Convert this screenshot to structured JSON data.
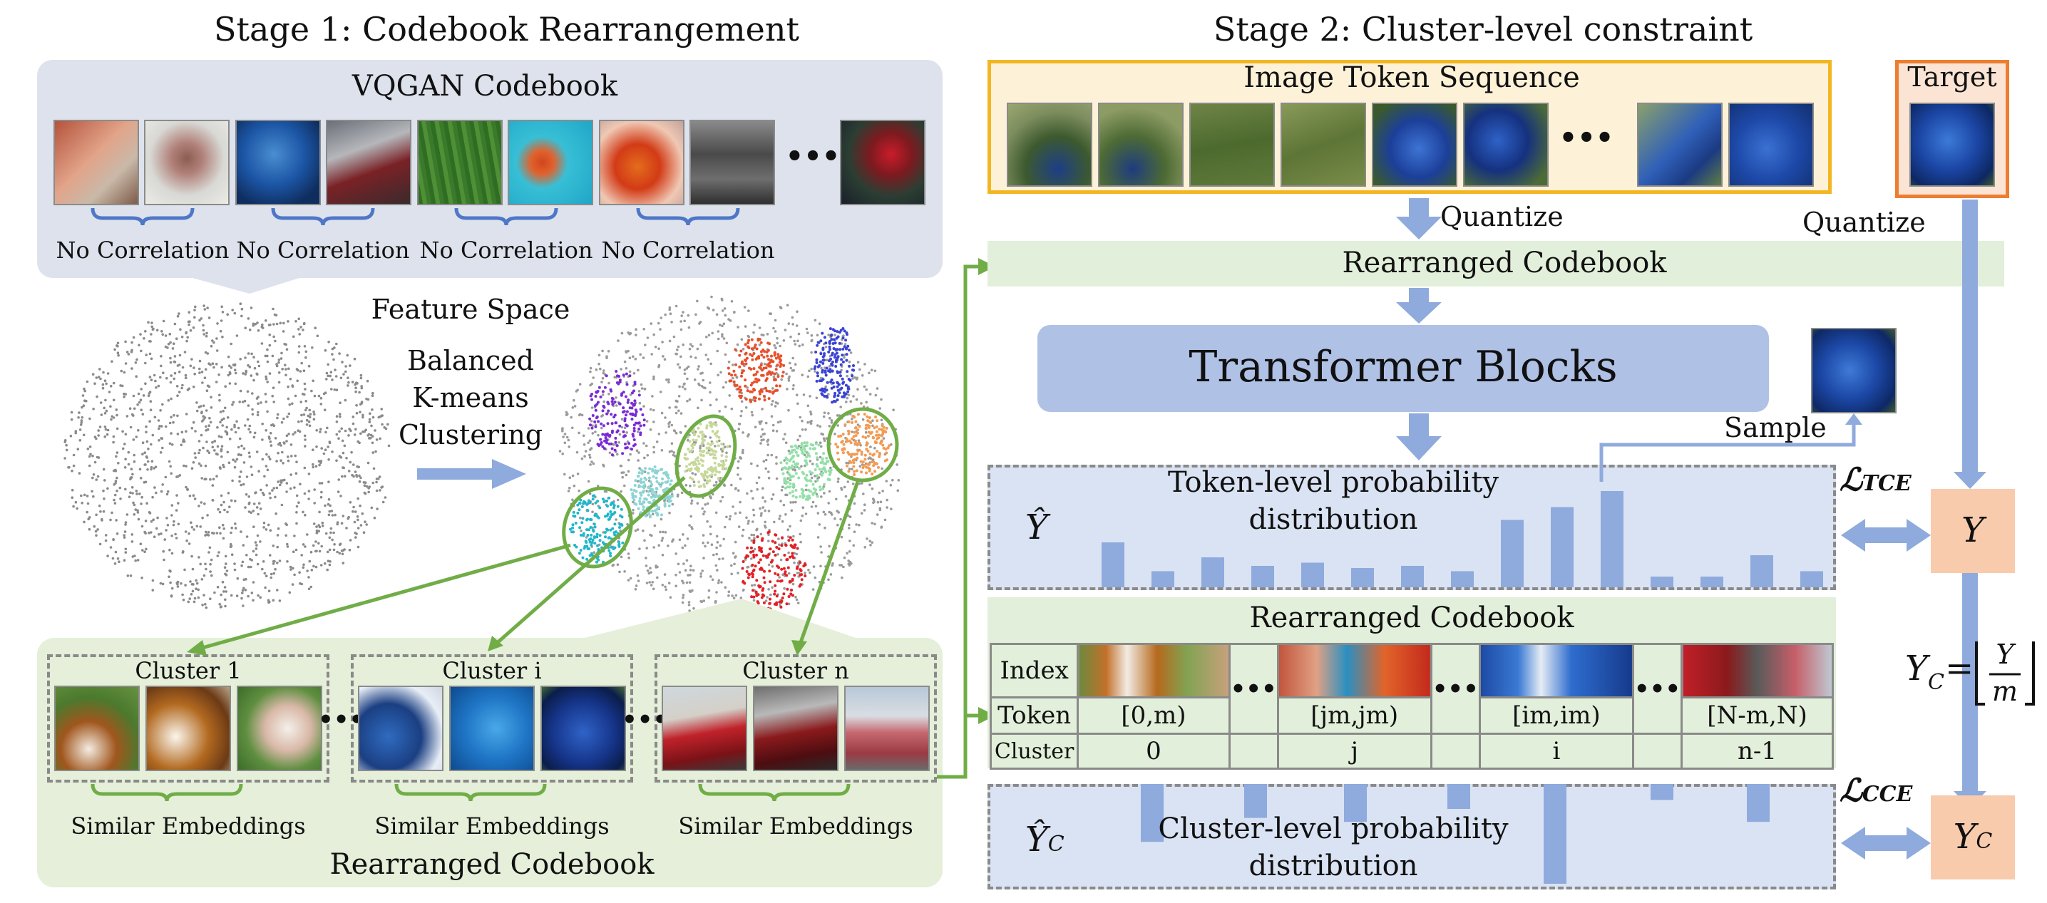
{
  "stage1": {
    "title": "Stage 1: Codebook Rearrangement",
    "codebook_title": "VQGAN Codebook",
    "ellipsis": "•••",
    "no_correlation": [
      "No Correlation",
      "No Correlation",
      "No Correlation",
      "No Correlation"
    ],
    "feature_space": "Feature Space",
    "clustering": [
      "Balanced",
      "K-means",
      "Clustering"
    ],
    "clusters": [
      {
        "label": "Cluster 1",
        "caption": "Similar Embeddings"
      },
      {
        "label": "Cluster i",
        "caption": "Similar Embeddings"
      },
      {
        "label": "Cluster n",
        "caption": "Similar Embeddings"
      }
    ],
    "rearranged": "Rearranged Codebook"
  },
  "stage2": {
    "title": "Stage 2: Cluster-level constraint",
    "token_seq_title": "Image Token Sequence",
    "ellipsis": "•••",
    "target": "Target",
    "quantize_left": "Quantize",
    "quantize_right": "Quantize",
    "rearranged_bar": "Rearranged Codebook",
    "transformer": "Transformer Blocks",
    "sample": "Sample",
    "token_prob": [
      "Token-level probability",
      "distribution"
    ],
    "yhat": "Ŷ",
    "y": "Y",
    "loss_tce": "ℒ",
    "loss_tce_sub": "TCE",
    "loss_cce": "ℒ",
    "loss_cce_sub": "CCE",
    "table_title": "Rearranged Codebook",
    "row_labels": [
      "Index",
      "Token",
      "Cluster"
    ],
    "tokens": [
      "[0,m)",
      "[jm,jm)",
      "[im,im)",
      "[N-m,N)"
    ],
    "clusters": [
      "0",
      "j",
      "i",
      "n-1"
    ],
    "table_ellipsis": "•••",
    "cluster_prob": [
      "Cluster-level probability",
      "distribution"
    ],
    "yc_hat": "Ŷ",
    "yc_hat_sub": "C",
    "yc": "Y",
    "yc_sub": "C",
    "formula_lhs": "Y",
    "formula_lhs_sub": "C",
    "formula_eq": "=",
    "formula_num": "Y",
    "formula_den": "m"
  },
  "colors": {
    "accent_blue": "#8faadc",
    "green": "#70ad47",
    "panel_blue": "#dae3f3",
    "panel_green": "#e2efda",
    "orange": "#ed7d31",
    "gold": "#f2b622",
    "peach": "#f8cbad"
  },
  "token_bars": [
    0.42,
    0.15,
    0.28,
    0.2,
    0.23,
    0.18,
    0.2,
    0.15,
    0.63,
    0.75,
    0.9,
    0.1,
    0.1,
    0.3,
    0.15
  ],
  "cluster_bars": [
    0.58,
    0.34,
    0.38,
    0.25,
    1.0,
    0.16,
    0.38
  ]
}
